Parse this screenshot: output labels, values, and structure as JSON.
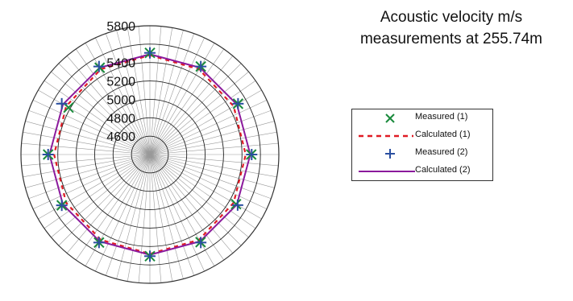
{
  "title": {
    "line1": "Acoustic velocity m/s",
    "line2": "measurements at 255.74m"
  },
  "legend": [
    {
      "label": "Measured (1)",
      "color": "#1a8a3c",
      "style": "x-marker"
    },
    {
      "label": "Calculated (1)",
      "color": "#e01b24",
      "style": "dashed-line"
    },
    {
      "label": "Measured (2)",
      "color": "#2a4fa0",
      "style": "plus-marker"
    },
    {
      "label": "Calculated (2)",
      "color": "#8b1a9c",
      "style": "solid-line"
    }
  ],
  "chart_data": {
    "type": "scatter",
    "projection": "polar",
    "radial_axis": {
      "range": [
        4400,
        5800
      ],
      "ticks": [
        4600,
        4800,
        5000,
        5200,
        5400,
        5800
      ]
    },
    "angle_zero": "top",
    "direction": "clockwise",
    "spoke_step_deg": 5,
    "series": [
      {
        "name": "Measured (1)",
        "marker": "x",
        "color": "#1a8a3c",
        "theta": [
          0,
          30,
          60,
          90,
          120,
          150,
          180,
          210,
          240,
          270,
          300,
          330
        ],
        "r": [
          5505,
          5505,
          5505,
          5500,
          5480,
          5500,
          5505,
          5505,
          5505,
          5505,
          5420,
          5490
        ]
      },
      {
        "name": "Calculated (1)",
        "line": "dashed",
        "color": "#e01b24",
        "theta": [
          0,
          30,
          60,
          90,
          120,
          150,
          180,
          210,
          240,
          270,
          300,
          330,
          360
        ],
        "r": [
          5480,
          5470,
          5450,
          5440,
          5450,
          5470,
          5480,
          5470,
          5450,
          5440,
          5450,
          5470,
          5480
        ]
      },
      {
        "name": "Measured (2)",
        "marker": "+",
        "color": "#2a4fa0",
        "theta": [
          0,
          30,
          60,
          90,
          120,
          150,
          180,
          210,
          240,
          270,
          300,
          330
        ],
        "r": [
          5505,
          5505,
          5505,
          5505,
          5500,
          5505,
          5505,
          5505,
          5505,
          5505,
          5505,
          5505
        ]
      },
      {
        "name": "Calculated (2)",
        "line": "solid",
        "color": "#8b1a9c",
        "theta": [
          0,
          30,
          60,
          90,
          120,
          150,
          180,
          210,
          240,
          270,
          300,
          330,
          360
        ],
        "r": [
          5490,
          5490,
          5490,
          5490,
          5490,
          5490,
          5490,
          5490,
          5490,
          5490,
          5490,
          5490,
          5490
        ]
      }
    ]
  }
}
